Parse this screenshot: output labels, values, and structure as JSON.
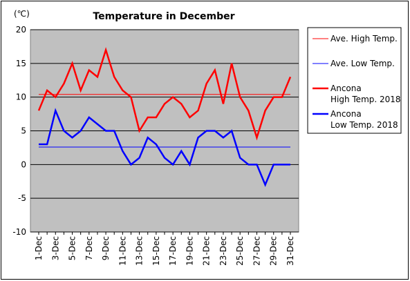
{
  "chart_data": {
    "type": "line",
    "title": "Temperature in December",
    "y_unit": "(℃)",
    "ylim": [
      -10,
      20
    ],
    "y_ticks": [
      -10,
      -5,
      0,
      5,
      10,
      15,
      20
    ],
    "grid": true,
    "legend_position": "right",
    "plot_background": "#c0c0c0",
    "x": [
      "1-Dec",
      "2-Dec",
      "3-Dec",
      "4-Dec",
      "5-Dec",
      "6-Dec",
      "7-Dec",
      "8-Dec",
      "9-Dec",
      "10-Dec",
      "11-Dec",
      "12-Dec",
      "13-Dec",
      "14-Dec",
      "15-Dec",
      "16-Dec",
      "17-Dec",
      "18-Dec",
      "19-Dec",
      "20-Dec",
      "21-Dec",
      "22-Dec",
      "23-Dec",
      "24-Dec",
      "25-Dec",
      "26-Dec",
      "27-Dec",
      "28-Dec",
      "29-Dec",
      "30-Dec",
      "31-Dec"
    ],
    "x_tick_labels": [
      "1-Dec",
      "3-Dec",
      "5-Dec",
      "7-Dec",
      "9-Dec",
      "11-Dec",
      "13-Dec",
      "15-Dec",
      "17-Dec",
      "19-Dec",
      "21-Dec",
      "23-Dec",
      "25-Dec",
      "27-Dec",
      "29-Dec",
      "31-Dec"
    ],
    "series": [
      {
        "name": "Ave. High Temp.",
        "color": "#ff0000",
        "style": "thin",
        "values": [
          10.4,
          10.4,
          10.4,
          10.4,
          10.4,
          10.4,
          10.4,
          10.4,
          10.4,
          10.4,
          10.4,
          10.4,
          10.4,
          10.4,
          10.4,
          10.4,
          10.4,
          10.4,
          10.4,
          10.4,
          10.4,
          10.4,
          10.4,
          10.4,
          10.4,
          10.4,
          10.4,
          10.4,
          10.4,
          10.4,
          10.4
        ]
      },
      {
        "name": "Ave. Low Temp.",
        "color": "#0000ff",
        "style": "thin",
        "values": [
          2.6,
          2.6,
          2.6,
          2.6,
          2.6,
          2.6,
          2.6,
          2.6,
          2.6,
          2.6,
          2.6,
          2.6,
          2.6,
          2.6,
          2.6,
          2.6,
          2.6,
          2.6,
          2.6,
          2.6,
          2.6,
          2.6,
          2.6,
          2.6,
          2.6,
          2.6,
          2.6,
          2.6,
          2.6,
          2.6,
          2.6
        ]
      },
      {
        "name": "Ancona High Temp. 2018",
        "legend_lines": [
          "Ancona",
          "High Temp. 2018"
        ],
        "color": "#ff0000",
        "style": "thick",
        "values": [
          8,
          11,
          10,
          12,
          15,
          11,
          14,
          13,
          17,
          13,
          11,
          10,
          5,
          7,
          7,
          9,
          10,
          9,
          7,
          8,
          12,
          14,
          9,
          15,
          10,
          8,
          4,
          8,
          10,
          10,
          13
        ]
      },
      {
        "name": "Ancona Low Temp. 2018",
        "legend_lines": [
          "Ancona",
          "Low Temp. 2018"
        ],
        "color": "#0000ff",
        "style": "thick",
        "values": [
          3,
          3,
          8,
          5,
          4,
          5,
          7,
          6,
          5,
          5,
          2,
          0,
          1,
          4,
          3,
          1,
          0,
          2,
          0,
          4,
          5,
          5,
          4,
          5,
          1,
          0,
          0,
          -3,
          0,
          0,
          0
        ]
      }
    ]
  }
}
